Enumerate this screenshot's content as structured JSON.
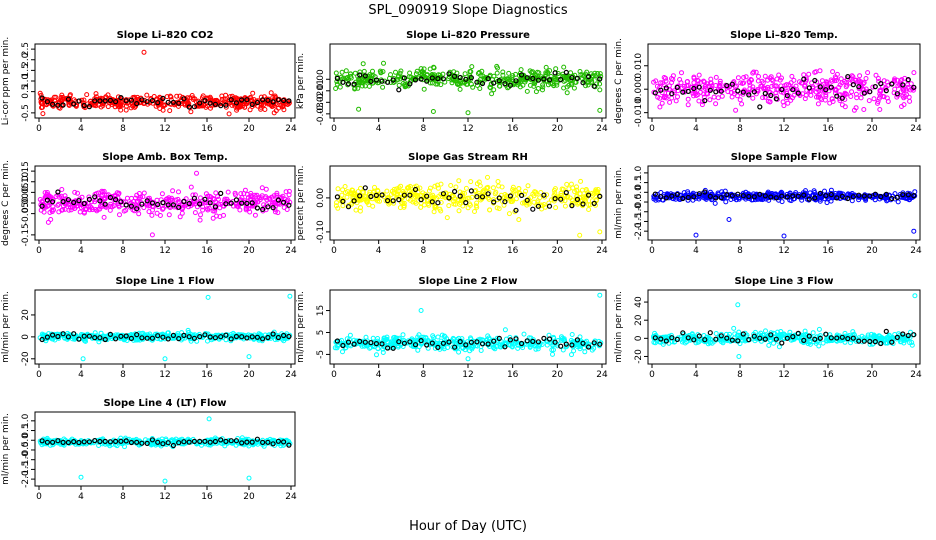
{
  "figure": {
    "title": "SPL_090919  Slope Diagnostics",
    "xlabel": "Hour of Day (UTC)"
  },
  "chart_data": [
    {
      "type": "scatter",
      "title": "Slope Li–820 CO2",
      "ylabel": "Li-cor ppm per min.",
      "xlim": [
        0,
        24
      ],
      "ylim": [
        -0.6,
        2.6
      ],
      "xticks": [
        0,
        4,
        8,
        12,
        16,
        20,
        24
      ],
      "yticks": [
        -0.5,
        0.5,
        1.0,
        1.5,
        2.0,
        2.5
      ],
      "ytick_labels": [
        "-0.5",
        "0.5",
        "1.0",
        "1.5",
        "2.0",
        "2.5"
      ],
      "color": "#ff0000",
      "center": 0.0,
      "spread": 0.28,
      "series": [
        {
          "values": "dense"
        }
      ],
      "outliers": [
        [
          10.0,
          2.35
        ],
        [
          18.1,
          -0.55
        ],
        [
          22.4,
          -0.5
        ]
      ],
      "black_points": true
    },
    {
      "type": "scatter",
      "title": "Slope Li–820 Pressure",
      "ylabel": "kPa per min.",
      "xlim": [
        0,
        24
      ],
      "ylim": [
        -0.031,
        0.028
      ],
      "xticks": [
        0,
        4,
        8,
        12,
        16,
        20,
        24
      ],
      "yticks": [
        -0.03,
        -0.02,
        -0.01,
        0.0
      ],
      "ytick_labels": [
        "-0.03",
        "-0.02",
        "-0.01",
        "0.00"
      ],
      "color": "#22bb00",
      "center": 0.0,
      "spread": 0.008,
      "outliers": [
        [
          12.0,
          -0.029
        ],
        [
          2.2,
          -0.026
        ],
        [
          23.8,
          -0.027
        ],
        [
          8.9,
          -0.028
        ]
      ],
      "black_points": true
    },
    {
      "type": "scatter",
      "title": "Slope Li–820 Temp.",
      "ylabel": "degrees C per min.",
      "xlim": [
        0,
        24
      ],
      "ylim": [
        -0.011,
        0.018
      ],
      "xticks": [
        0,
        4,
        8,
        12,
        16,
        20,
        24
      ],
      "yticks": [
        -0.01,
        0.0,
        0.01
      ],
      "ytick_labels": [
        "-0.010",
        "0.000",
        "0.010"
      ],
      "color": "#ff00ff",
      "center": 0.0,
      "spread": 0.006,
      "outliers": [
        [
          7.6,
          -0.009
        ],
        [
          18.4,
          -0.009
        ],
        [
          2.2,
          -0.005
        ]
      ],
      "black_points": true
    },
    {
      "type": "scatter",
      "title": "Slope Amb. Box Temp.",
      "ylabel": "degrees C per min.",
      "xlim": [
        0,
        24
      ],
      "ylim": [
        -0.16,
        0.16
      ],
      "xticks": [
        0,
        4,
        8,
        12,
        16,
        20,
        24
      ],
      "yticks": [
        -0.15,
        -0.05,
        0.0,
        0.05,
        0.1,
        0.15
      ],
      "ytick_labels": [
        "-0.15",
        "-0.05",
        "0.00",
        "0.05",
        "0.10",
        "0.15"
      ],
      "color": "#ff00ff",
      "center": 0.0,
      "spread": 0.05,
      "outliers": [
        [
          10.8,
          -0.15
        ],
        [
          15.0,
          0.14
        ]
      ],
      "black_points": true
    },
    {
      "type": "scatter",
      "title": "Slope Gas Stream RH",
      "ylabel": "percent per min.",
      "xlim": [
        0,
        24
      ],
      "ylim": [
        -0.115,
        0.085
      ],
      "xticks": [
        0,
        4,
        8,
        12,
        16,
        20,
        24
      ],
      "yticks": [
        -0.1,
        0.0
      ],
      "ytick_labels": [
        "-0.10",
        "0.00"
      ],
      "color": "#ffff00",
      "center": 0.0,
      "spread": 0.035,
      "outliers": [
        [
          22.0,
          -0.11
        ],
        [
          23.8,
          -0.1
        ]
      ],
      "black_points": true
    },
    {
      "type": "scatter",
      "title": "Slope Sample Flow",
      "ylabel": "ml/min per min.",
      "xlim": [
        0,
        24
      ],
      "ylim": [
        -2.3,
        1.2
      ],
      "xticks": [
        0,
        4,
        8,
        12,
        16,
        20,
        24
      ],
      "yticks": [
        -2.0,
        -1.5,
        -1.0,
        -0.5,
        0.0,
        0.5,
        1.0
      ],
      "ytick_labels": [
        "-2.0",
        "-1.5",
        "-1.0",
        "-0.5",
        "0.0",
        "0.5",
        "1.0"
      ],
      "color": "#0000ff",
      "center": -0.2,
      "spread": 0.2,
      "outliers": [
        [
          4.0,
          -2.2
        ],
        [
          12.0,
          -2.25
        ],
        [
          23.8,
          -2.0
        ],
        [
          7.0,
          -1.4
        ]
      ],
      "black_points": true
    },
    {
      "type": "scatter",
      "title": "Slope Line 1 Flow",
      "ylabel": "ml/min per min.",
      "xlim": [
        0,
        24
      ],
      "ylim": [
        -22,
        40
      ],
      "xticks": [
        0,
        4,
        8,
        12,
        16,
        20,
        24
      ],
      "yticks": [
        -20,
        0,
        20
      ],
      "ytick_labels": [
        "-20",
        "0",
        "20"
      ],
      "color": "#00ffff",
      "center": 0.0,
      "spread": 3,
      "outliers": [
        [
          16.1,
          36
        ],
        [
          23.9,
          37
        ],
        [
          4.2,
          -20
        ],
        [
          12.0,
          -20
        ],
        [
          20.0,
          -18
        ]
      ],
      "black_points": true
    },
    {
      "type": "scatter",
      "title": "Slope Line 2 Flow",
      "ylabel": "ml/min per min.",
      "xlim": [
        0,
        24
      ],
      "ylim": [
        -8,
        23
      ],
      "xticks": [
        0,
        4,
        8,
        12,
        16,
        20,
        24
      ],
      "yticks": [
        -5,
        5,
        15
      ],
      "ytick_labels": [
        "-5",
        "5",
        "15"
      ],
      "color": "#00ffff",
      "center": 0.0,
      "spread": 3,
      "outliers": [
        [
          23.8,
          22
        ],
        [
          7.8,
          15
        ],
        [
          12.0,
          -7
        ]
      ],
      "black_points": true
    },
    {
      "type": "scatter",
      "title": "Slope Line 3 Flow",
      "ylabel": "ml/min per min.",
      "xlim": [
        0,
        24
      ],
      "ylim": [
        -25,
        50
      ],
      "xticks": [
        0,
        4,
        8,
        12,
        16,
        20,
        24
      ],
      "yticks": [
        -20,
        0,
        20,
        40
      ],
      "ytick_labels": [
        "-20",
        "0",
        "20",
        "40"
      ],
      "color": "#00ffff",
      "center": 0.0,
      "spread": 6,
      "outliers": [
        [
          23.9,
          47
        ],
        [
          7.8,
          37
        ],
        [
          7.9,
          -20
        ]
      ],
      "black_points": true
    },
    {
      "type": "scatter",
      "title": "Slope Line 4 (LT) Flow",
      "ylabel": "ml/min per min.",
      "xlim": [
        0,
        24
      ],
      "ylim": [
        -2.2,
        1.3
      ],
      "xticks": [
        0,
        4,
        8,
        12,
        16,
        20,
        24
      ],
      "yticks": [
        -2.0,
        -1.5,
        -1.0,
        -0.5,
        0.0,
        0.5,
        1.0
      ],
      "ytick_labels": [
        "-2.0",
        "-1.5",
        "-1.0",
        "-0.5",
        "0.0",
        "0.5",
        "1.0"
      ],
      "color": "#00ffff",
      "center": -0.1,
      "spread": 0.15,
      "outliers": [
        [
          16.2,
          1.1
        ],
        [
          4.0,
          -1.9
        ],
        [
          12.0,
          -2.1
        ],
        [
          20.0,
          -1.95
        ]
      ],
      "black_points": true
    }
  ]
}
